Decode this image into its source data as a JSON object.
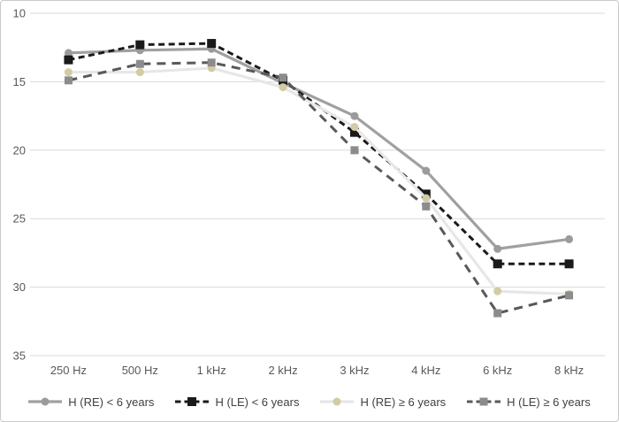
{
  "chart_data": {
    "type": "line",
    "title": "",
    "xlabel": "",
    "ylabel": "",
    "categories": [
      "250 Hz",
      "500 Hz",
      "1 kHz",
      "2 kHz",
      "3 kHz",
      "4 kHz",
      "6 kHz",
      "8 kHz"
    ],
    "series": [
      {
        "name": "H (RE) < 6 years",
        "values": [
          12.9,
          12.7,
          12.6,
          15.1,
          17.5,
          21.5,
          27.2,
          26.5
        ],
        "color": "#a0a0a0",
        "line_width": 3.2,
        "dash": null,
        "marker": "circle",
        "marker_color": "#9b9b9b",
        "marker_size": 9
      },
      {
        "name": "H (LE) < 6 years",
        "values": [
          13.4,
          12.3,
          12.2,
          14.9,
          18.7,
          23.2,
          28.3,
          28.3
        ],
        "color": "#1a1a1a",
        "line_width": 3,
        "dash": "7 4.5",
        "marker": "square",
        "marker_color": "#1a1a1a",
        "marker_size": 10
      },
      {
        "name": "H (RE) ≥ 6 years",
        "values": [
          14.3,
          14.3,
          14.0,
          15.4,
          18.3,
          23.5,
          30.3,
          30.5
        ],
        "color": "#e7e7e7",
        "line_width": 3.2,
        "dash": null,
        "marker": "circle",
        "marker_color": "#d2cba3",
        "marker_size": 9
      },
      {
        "name": "H (LE) ≥ 6 years",
        "values": [
          14.9,
          13.7,
          13.6,
          14.7,
          20.0,
          24.1,
          31.9,
          30.6
        ],
        "color": "#595959",
        "line_width": 3,
        "dash": "10 7",
        "marker": "square",
        "marker_color": "#8c8c8c",
        "marker_size": 9
      }
    ],
    "y_axis": {
      "min": 10,
      "max": 35,
      "step": 5,
      "inverted": true,
      "ticks": [
        "10",
        "15",
        "20",
        "25",
        "30",
        "35"
      ]
    },
    "grid": true,
    "legend_position": "bottom"
  },
  "colors": {
    "background": "#ffffff",
    "frame_border": "#c9c9c9",
    "gridline": "#d9d9d9",
    "axis_label": "#595959",
    "legend_text": "#404040"
  }
}
